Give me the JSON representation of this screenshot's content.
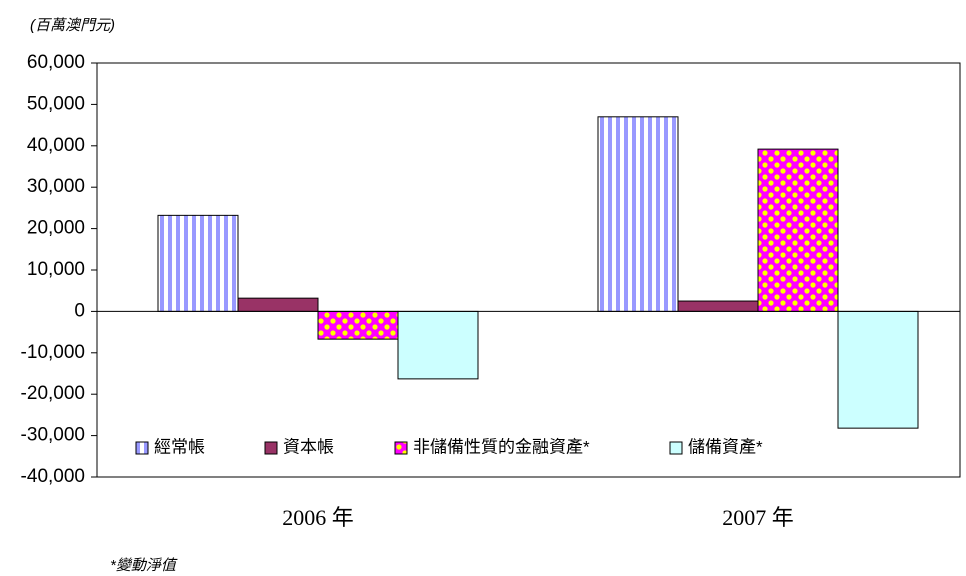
{
  "chart_data": {
    "type": "bar",
    "unit_label": "(百萬澳門元)",
    "footnote": "*變動淨值",
    "categories": [
      "2006 年",
      "2007 年"
    ],
    "series": [
      {
        "name": "經常帳",
        "color": "#9999ff",
        "values": [
          23200,
          47000
        ]
      },
      {
        "name": "資本帳",
        "color": "#993366",
        "values": [
          3200,
          2500
        ]
      },
      {
        "name": "非儲備性質的金融資產*",
        "color": "#ff00ff",
        "values": [
          -6700,
          39200
        ]
      },
      {
        "name": "儲備資產*",
        "color": "#ccffff",
        "values": [
          -16300,
          -28200
        ]
      }
    ],
    "ylim": [
      -40000,
      60000
    ],
    "yticks": [
      {
        "value": -40000,
        "label": "-40,000"
      },
      {
        "value": -30000,
        "label": "-30,000"
      },
      {
        "value": -20000,
        "label": "-20,000"
      },
      {
        "value": -10000,
        "label": "-10,000"
      },
      0,
      {
        "value": 10000,
        "label": "10,000"
      },
      {
        "value": 20000,
        "label": "20,000"
      },
      {
        "value": 30000,
        "label": "30,000"
      },
      {
        "value": 40000,
        "label": "40,000"
      },
      {
        "value": 50000,
        "label": "50,000"
      },
      {
        "value": 60000,
        "label": "60,000"
      }
    ],
    "legend": "bottom"
  }
}
